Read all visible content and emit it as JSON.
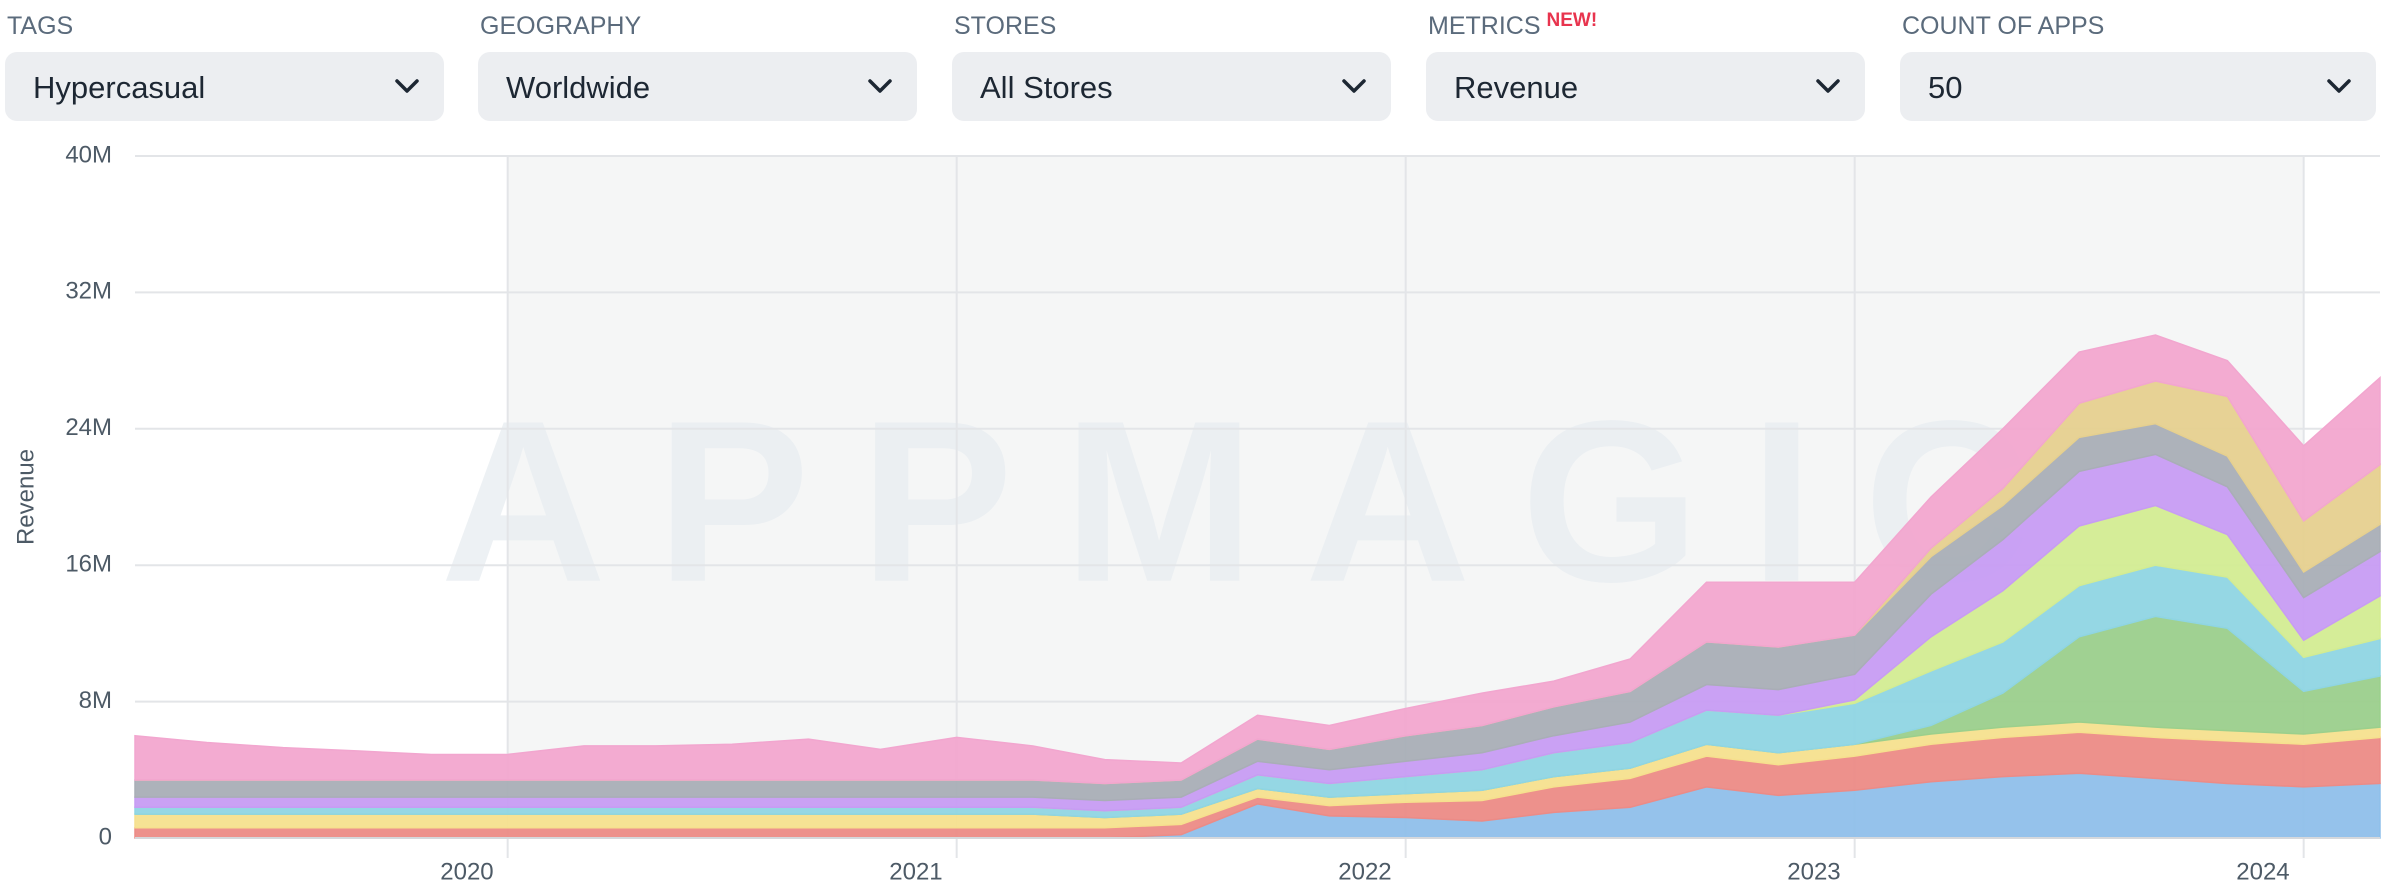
{
  "filters": [
    {
      "label": "TAGS",
      "value": "Hypercasual"
    },
    {
      "label": "GEOGRAPHY",
      "value": "Worldwide"
    },
    {
      "label": "STORES",
      "value": "All Stores"
    },
    {
      "label": "METRICS",
      "badge": "NEW!",
      "value": "Revenue"
    },
    {
      "label": "COUNT OF APPS",
      "value": "50"
    }
  ],
  "chart_data": {
    "type": "stacked-area",
    "y_label": "Revenue",
    "watermark": "APPMAGIC",
    "x": [
      2019.17,
      2019.33,
      2019.5,
      2019.67,
      2019.83,
      2020,
      2020.17,
      2020.33,
      2020.5,
      2020.67,
      2020.83,
      2021,
      2021.17,
      2021.33,
      2021.5,
      2021.67,
      2021.83,
      2022,
      2022.17,
      2022.33,
      2022.5,
      2022.67,
      2022.83,
      2023,
      2023.17,
      2023.33,
      2023.5,
      2023.67,
      2023.83,
      2024,
      2024.17
    ],
    "xlim": [
      2019.17,
      2024.17
    ],
    "xticks": [
      2020,
      2021,
      2022,
      2023,
      2024
    ],
    "ylim": [
      0,
      40000000
    ],
    "yticks": [
      0,
      {
        "value": 8000000,
        "label": "8M"
      },
      {
        "value": 16000000,
        "label": "16M"
      },
      {
        "value": 24000000,
        "label": "24M"
      },
      {
        "value": 32000000,
        "label": "32M"
      },
      {
        "value": 40000000,
        "label": "40M"
      }
    ],
    "grid": true,
    "series": [
      {
        "color": "#8fbfea",
        "values": [
          0,
          0,
          0,
          0,
          0,
          0,
          0,
          0,
          0,
          0,
          0,
          0,
          0,
          0,
          200000.0,
          2000000.0,
          1300000.0,
          1200000.0,
          1000000.0,
          1500000.0,
          1800000.0,
          3000000.0,
          2500000.0,
          2800000.0,
          3300000.0,
          3600000.0,
          3800000.0,
          3500000.0,
          3200000.0,
          3000000.0,
          3200000.0
        ]
      },
      {
        "color": "#ec8b86",
        "values": [
          600000.0,
          600000.0,
          600000.0,
          600000.0,
          600000.0,
          600000.0,
          600000.0,
          600000.0,
          600000.0,
          600000.0,
          600000.0,
          600000.0,
          600000.0,
          600000.0,
          600000.0,
          400000.0,
          600000.0,
          900000.0,
          1200000.0,
          1500000.0,
          1700000.0,
          1800000.0,
          1800000.0,
          2000000.0,
          2200000.0,
          2300000.0,
          2400000.0,
          2400000.0,
          2500000.0,
          2500000.0,
          2700000.0
        ]
      },
      {
        "color": "#f6e08e",
        "values": [
          800000.0,
          800000.0,
          800000.0,
          800000.0,
          800000.0,
          800000.0,
          800000.0,
          800000.0,
          800000.0,
          800000.0,
          800000.0,
          800000.0,
          800000.0,
          600000.0,
          600000.0,
          500000.0,
          500000.0,
          500000.0,
          600000.0,
          600000.0,
          600000.0,
          700000.0,
          700000.0,
          700000.0,
          600000.0,
          600000.0,
          600000.0,
          600000.0,
          600000.0,
          600000.0,
          600000.0
        ]
      },
      {
        "color": "#9bcf8c",
        "values": [
          0,
          0,
          0,
          0,
          0,
          0,
          0,
          0,
          0,
          0,
          0,
          0,
          0,
          0,
          0,
          0,
          0,
          0,
          0,
          0,
          0,
          0,
          0,
          0,
          500000.0,
          2000000.0,
          5000000.0,
          6500000.0,
          6000000.0,
          2500000.0,
          3000000.0
        ]
      },
      {
        "color": "#8fd5e3",
        "values": [
          400000.0,
          400000.0,
          400000.0,
          400000.0,
          400000.0,
          400000.0,
          400000.0,
          400000.0,
          400000.0,
          400000.0,
          400000.0,
          400000.0,
          400000.0,
          400000.0,
          400000.0,
          800000.0,
          800000.0,
          1000000.0,
          1200000.0,
          1400000.0,
          1500000.0,
          2000000.0,
          2200000.0,
          2400000.0,
          3200000.0,
          3000000.0,
          3000000.0,
          3000000.0,
          3000000.0,
          2000000.0,
          2200000.0
        ]
      },
      {
        "color": "#d3ec92",
        "values": [
          0,
          0,
          0,
          0,
          0,
          0,
          0,
          0,
          0,
          0,
          0,
          0,
          0,
          0,
          0,
          0,
          0,
          0,
          0,
          0,
          0,
          0,
          0,
          200000.0,
          2000000.0,
          3000000.0,
          3500000.0,
          3500000.0,
          2500000.0,
          1000000.0,
          2500000.0
        ]
      },
      {
        "color": "#c79cf3",
        "values": [
          600000.0,
          600000.0,
          600000.0,
          600000.0,
          600000.0,
          600000.0,
          600000.0,
          600000.0,
          600000.0,
          600000.0,
          600000.0,
          600000.0,
          600000.0,
          600000.0,
          600000.0,
          800000.0,
          800000.0,
          900000.0,
          1000000.0,
          1000000.0,
          1200000.0,
          1500000.0,
          1500000.0,
          1500000.0,
          2500000.0,
          3000000.0,
          3200000.0,
          3000000.0,
          2800000.0,
          2500000.0,
          2600000.0
        ]
      },
      {
        "color": "#a9aeb6",
        "values": [
          1000000.0,
          1000000.0,
          1000000.0,
          1000000.0,
          1000000.0,
          1000000.0,
          1000000.0,
          1000000.0,
          1000000.0,
          1000000.0,
          1000000.0,
          1000000.0,
          1000000.0,
          1000000.0,
          1000000.0,
          1300000.0,
          1200000.0,
          1500000.0,
          1600000.0,
          1700000.0,
          1800000.0,
          2500000.0,
          2500000.0,
          2300000.0,
          2200000.0,
          2000000.0,
          2000000.0,
          1800000.0,
          1800000.0,
          1500000.0,
          1600000.0
        ]
      },
      {
        "color": "#e6d08f",
        "values": [
          0,
          0,
          0,
          0,
          0,
          0,
          0,
          0,
          0,
          0,
          0,
          0,
          0,
          0,
          0,
          0,
          0,
          0,
          0,
          0,
          0,
          0,
          0,
          0,
          500000.0,
          1000000.0,
          2000000.0,
          2500000.0,
          3500000.0,
          3000000.0,
          3500000.0
        ]
      },
      {
        "color": "#f2a6cf",
        "values": [
          2600000.0,
          2200000.0,
          1900000.0,
          1700000.0,
          1500000.0,
          1500000.0,
          2000000.0,
          2000000.0,
          2100000.0,
          2400000.0,
          1800000.0,
          2500000.0,
          2000000.0,
          1400000.0,
          1000000.0,
          1400000.0,
          1400000.0,
          1600000.0,
          1900000.0,
          1500000.0,
          1900000.0,
          3500000.0,
          3800000.0,
          3100000.0,
          3000000.0,
          3500000.0,
          3000000.0,
          2700000.0,
          2100000.0,
          4400000.0,
          5100000.0
        ]
      }
    ]
  }
}
